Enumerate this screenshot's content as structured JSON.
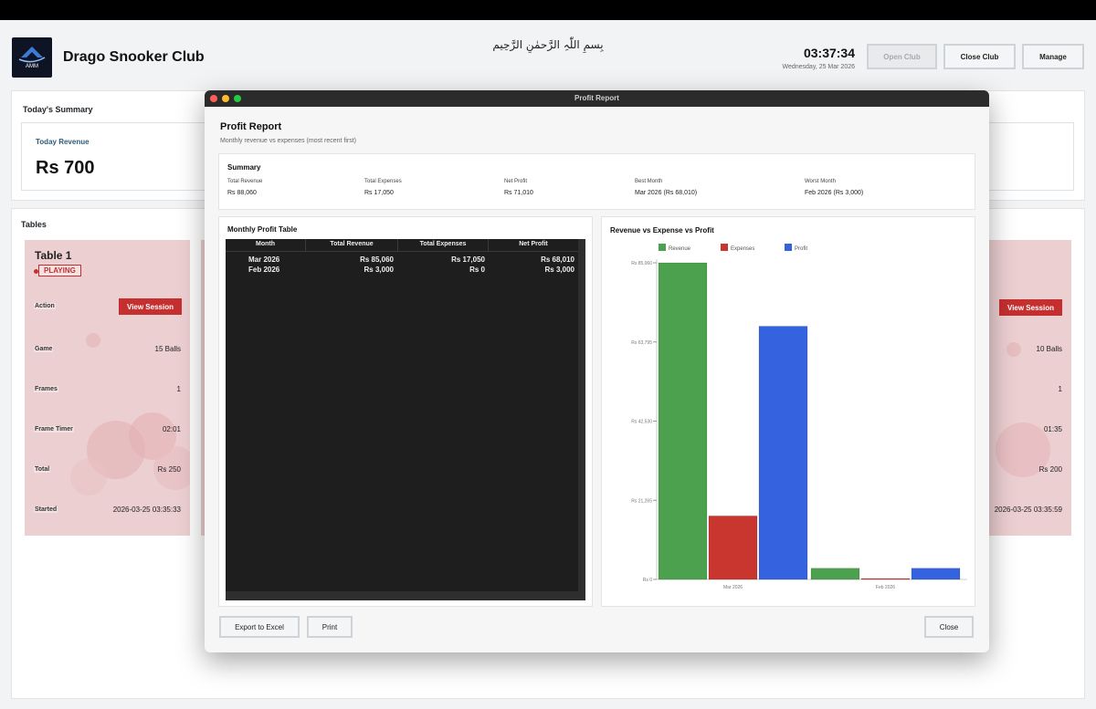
{
  "app": {
    "title": "Drago Snooker Club",
    "logo_text": "AMM",
    "bismillah": "بِسمِ اللّٰہِ الرَّحمٰنِ الرَّحِیم",
    "clock": "03:37:34",
    "date": "Wednesday, 25 Mar 2026",
    "buttons": {
      "open": "Open Club",
      "close": "Close Club",
      "manage": "Manage"
    }
  },
  "summary_panel": {
    "title": "Today's Summary",
    "revenue_label": "Today Revenue",
    "revenue_value": "Rs 700"
  },
  "tables_panel": {
    "title": "Tables",
    "cards": [
      {
        "title": "Table 1",
        "status": "PLAYING",
        "labels": {
          "action": "Action",
          "game": "Game",
          "frames": "Frames",
          "timer": "Frame Timer",
          "total": "Total",
          "started": "Started"
        },
        "button": "View Session",
        "game": "15 Balls",
        "frames": "1",
        "timer": "02:01",
        "total": "Rs 250",
        "started": "2026-03-25 03:35:33"
      },
      {
        "button": "View Session",
        "game": "10 Balls",
        "frames": "1",
        "timer": "01:35",
        "total": "Rs 200",
        "started": "2026-03-25 03:35:59"
      }
    ]
  },
  "modal": {
    "window_title": "Profit Report",
    "heading": "Profit Report",
    "subtitle": "Monthly revenue vs expenses (most recent first)",
    "summary": {
      "title": "Summary",
      "total_revenue_label": "Total Revenue",
      "total_revenue": "Rs 88,060",
      "total_expenses_label": "Total Expenses",
      "total_expenses": "Rs 17,050",
      "net_profit_label": "Net Profit",
      "net_profit": "Rs 71,010",
      "best_month_label": "Best Month",
      "best_month": "Mar 2026 (Rs 68,010)",
      "worst_month_label": "Worst Month",
      "worst_month": "Feb 2026 (Rs 3,000)"
    },
    "table": {
      "title": "Monthly Profit Table",
      "columns": [
        "Month",
        "Total Revenue",
        "Total Expenses",
        "Net Profit"
      ],
      "rows": [
        [
          "Mar 2026",
          "Rs 85,060",
          "Rs 17,050",
          "Rs 68,010"
        ],
        [
          "Feb 2026",
          "Rs 3,000",
          "Rs 0",
          "Rs 3,000"
        ]
      ]
    },
    "buttons": {
      "export": "Export to Excel",
      "print": "Print",
      "close": "Close"
    }
  },
  "colors": {
    "revenue": "#4ca14f",
    "expenses": "#c9352f",
    "profit": "#3563e0",
    "accent_red": "#c62f2f"
  },
  "chart_data": {
    "type": "bar",
    "title": "Revenue vs Expense vs Profit",
    "categories": [
      "Mar 2026",
      "Feb 2026"
    ],
    "series": [
      {
        "name": "Revenue",
        "values": [
          85060,
          3000
        ]
      },
      {
        "name": "Expenses",
        "values": [
          17050,
          0
        ]
      },
      {
        "name": "Profit",
        "values": [
          68010,
          3000
        ]
      }
    ],
    "yticks": [
      "Rs 0",
      "Rs 21,265",
      "Rs 42,530",
      "Rs 63,795",
      "Rs 85,060"
    ],
    "ylim": [
      0,
      85060
    ],
    "legend": "top",
    "grid": false
  }
}
